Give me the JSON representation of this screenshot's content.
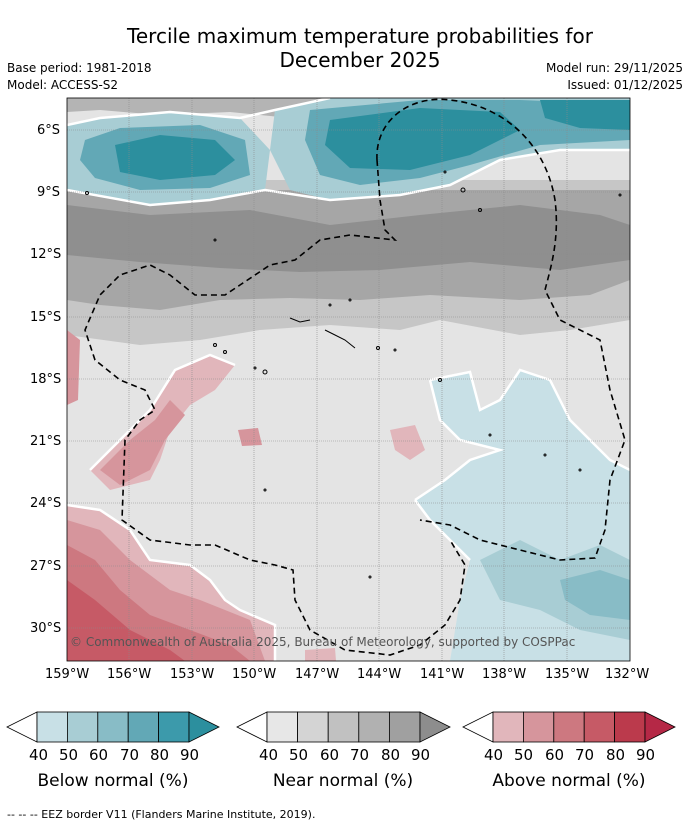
{
  "title_line1": "Tercile maximum temperature probabilities for",
  "title_line2": "December 2025",
  "base_period": "Base period: 1981-2018",
  "model": "Model: ACCESS-S2",
  "model_run": "Model run: 29/11/2025",
  "issued": "Issued: 01/12/2025",
  "lat_ticks": [
    "6°S",
    "9°S",
    "12°S",
    "15°S",
    "18°S",
    "21°S",
    "24°S",
    "27°S",
    "30°S"
  ],
  "lon_ticks": [
    "159°W",
    "156°W",
    "153°W",
    "150°W",
    "147°W",
    "144°W",
    "141°W",
    "138°W",
    "135°W",
    "132°W"
  ],
  "credit": "© Commonwealth of Australia 2025, Bureau of Meteorology, supported by COSPPac",
  "footnote": "-- -- -- EEZ border V11 (Flanders Marine Institute, 2019).",
  "legend": {
    "below": {
      "title": "Below normal (%)",
      "labels": [
        "40",
        "50",
        "60",
        "70",
        "80",
        "90"
      ],
      "colors": [
        "#ffffff",
        "#c8e0e6",
        "#a8cdd4",
        "#88bcc6",
        "#62a8b6",
        "#3c9aab",
        "#2c8f9e"
      ]
    },
    "near": {
      "title": "Near normal (%)",
      "labels": [
        "40",
        "50",
        "60",
        "70",
        "80",
        "90"
      ],
      "colors": [
        "#ffffff",
        "#e7e7e7",
        "#d4d4d4",
        "#c1c1c1",
        "#b1b1b1",
        "#a0a0a0",
        "#8d8d8d"
      ]
    },
    "above": {
      "title": "Above normal (%)",
      "labels": [
        "40",
        "50",
        "60",
        "70",
        "80",
        "90"
      ],
      "colors": [
        "#ffffff",
        "#e1b6bb",
        "#d6959c",
        "#cd7880",
        "#c65a66",
        "#bb3a4c",
        "#b52846"
      ]
    }
  }
}
